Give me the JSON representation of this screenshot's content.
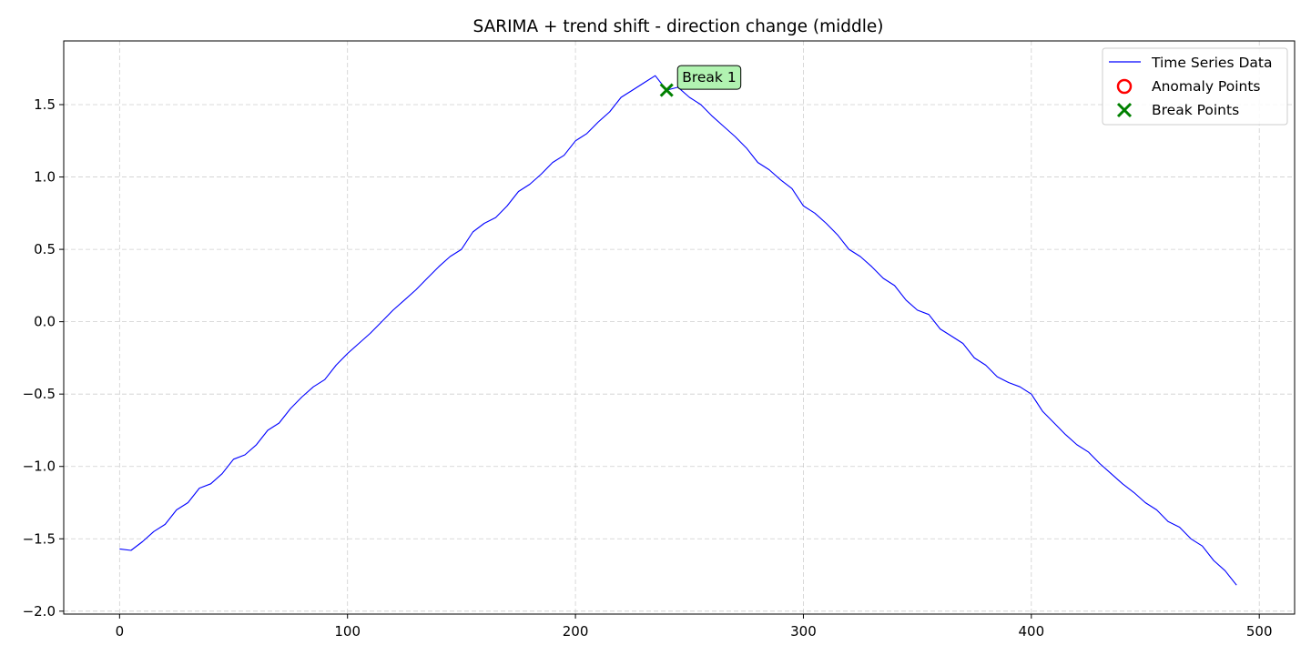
{
  "chart_data": {
    "type": "line",
    "title": "SARIMA + trend shift - direction change (middle)",
    "xlabel": "",
    "ylabel": "",
    "xlim": [
      -24.5,
      515.5
    ],
    "ylim": [
      -2.02,
      1.94
    ],
    "xticks": [
      0,
      100,
      200,
      300,
      400,
      500
    ],
    "xtick_labels": [
      "0",
      "100",
      "200",
      "300",
      "400",
      "500"
    ],
    "yticks": [
      -2.0,
      -1.5,
      -1.0,
      -0.5,
      0.0,
      0.5,
      1.0,
      1.5
    ],
    "ytick_labels": [
      "−2.0",
      "−1.5",
      "−1.0",
      "−0.5",
      "0.0",
      "0.5",
      "1.0",
      "1.5"
    ],
    "grid": true,
    "legend_position": "top-right",
    "series": [
      {
        "name": "Time Series Data",
        "color": "#0000ff",
        "x": [
          0,
          5,
          10,
          15,
          20,
          25,
          30,
          35,
          40,
          45,
          50,
          55,
          60,
          65,
          70,
          75,
          80,
          85,
          90,
          95,
          100,
          105,
          110,
          115,
          120,
          125,
          130,
          135,
          140,
          145,
          150,
          155,
          160,
          165,
          170,
          175,
          180,
          185,
          190,
          195,
          200,
          205,
          210,
          215,
          220,
          225,
          230,
          235,
          240,
          245,
          250,
          255,
          260,
          265,
          270,
          275,
          280,
          285,
          290,
          295,
          300,
          305,
          310,
          315,
          320,
          325,
          330,
          335,
          340,
          345,
          350,
          355,
          360,
          365,
          370,
          375,
          380,
          385,
          390,
          395,
          400,
          405,
          410,
          415,
          420,
          425,
          430,
          435,
          440,
          445,
          450,
          455,
          460,
          465,
          470,
          475,
          480,
          485,
          490
        ],
        "y": [
          -1.57,
          -1.58,
          -1.52,
          -1.45,
          -1.4,
          -1.3,
          -1.25,
          -1.15,
          -1.12,
          -1.05,
          -0.95,
          -0.92,
          -0.85,
          -0.75,
          -0.7,
          -0.6,
          -0.52,
          -0.45,
          -0.4,
          -0.3,
          -0.22,
          -0.15,
          -0.08,
          0.0,
          0.08,
          0.15,
          0.22,
          0.3,
          0.38,
          0.45,
          0.5,
          0.62,
          0.68,
          0.72,
          0.8,
          0.9,
          0.95,
          1.02,
          1.1,
          1.15,
          1.25,
          1.3,
          1.38,
          1.45,
          1.55,
          1.6,
          1.65,
          1.7,
          1.6,
          1.62,
          1.55,
          1.5,
          1.42,
          1.35,
          1.28,
          1.2,
          1.1,
          1.05,
          0.98,
          0.92,
          0.8,
          0.75,
          0.68,
          0.6,
          0.5,
          0.45,
          0.38,
          0.3,
          0.25,
          0.15,
          0.08,
          0.05,
          -0.05,
          -0.1,
          -0.15,
          -0.25,
          -0.3,
          -0.38,
          -0.42,
          -0.45,
          -0.5,
          -0.62,
          -0.7,
          -0.78,
          -0.85,
          -0.9,
          -0.98,
          -1.05,
          -1.12,
          -1.18,
          -1.25,
          -1.3,
          -1.38,
          -1.42,
          -1.5,
          -1.55,
          -1.65,
          -1.72,
          -1.82
        ]
      },
      {
        "name": "Anomaly Points",
        "color": "#ff0000",
        "x": [],
        "y": []
      },
      {
        "name": "Break Points",
        "color": "#008000",
        "x": [
          240
        ],
        "y": [
          1.6
        ]
      }
    ],
    "annotations": [
      {
        "text": "Break 1",
        "x": 240,
        "y": 1.6,
        "color": "#90ee90"
      }
    ]
  }
}
